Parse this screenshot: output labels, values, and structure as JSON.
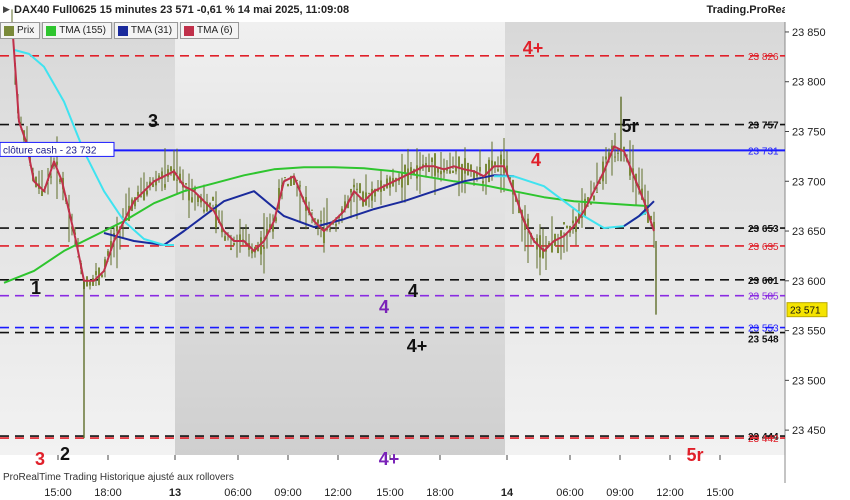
{
  "header": {
    "title": "DAX40 Full0625 15 minutes 23 571 -0,61 % 14 mai 2025, 11:09:08",
    "brand": "Trading.ProRealTime.com"
  },
  "legend": [
    {
      "label": "Prix",
      "color": "#7a8a3a"
    },
    {
      "label": "TMA (155)",
      "color": "#2ec52e"
    },
    {
      "label": "TMA (31)",
      "color": "#1a2a9c"
    },
    {
      "label": "TMA (6)",
      "color": "#c0304a"
    }
  ],
  "footer": "ProRealTime Trading  Historique ajusté aux rollovers",
  "cash_label": "clôture cash -  23 732",
  "chart_data": {
    "type": "candlestick",
    "ylim": [
      23425,
      23860
    ],
    "y_ticks": [
      {
        "v": 23850,
        "label": "23 850"
      },
      {
        "v": 23800,
        "label": "23 800"
      },
      {
        "v": 23750,
        "label": "23 750"
      },
      {
        "v": 23700,
        "label": "23 700"
      },
      {
        "v": 23650,
        "label": "23 650"
      },
      {
        "v": 23600,
        "label": "23 600"
      },
      {
        "v": 23550,
        "label": "23 550"
      },
      {
        "v": 23500,
        "label": "23 500"
      },
      {
        "v": 23450,
        "label": "23 450"
      }
    ],
    "x_ticks": [
      "15:00",
      "18:00",
      "13",
      "06:00",
      "09:00",
      "12:00",
      "15:00",
      "18:00",
      "14",
      "06:00",
      "09:00",
      "12:00",
      "15:00"
    ],
    "current_price": {
      "value": 23571,
      "label": "23 571"
    },
    "levels": [
      {
        "value": 23826,
        "label": "23 826",
        "color": "#e0202a",
        "style": "dash",
        "marker": "4+",
        "marker_color": "#e0202a"
      },
      {
        "value": 23757,
        "label": "23 757",
        "color": "#111111",
        "style": "dash",
        "marker": "3",
        "marker_color": "#111111"
      },
      {
        "value": 23757,
        "label": "",
        "color": "#111111",
        "style": "none",
        "marker": "5r",
        "marker_color": "#111111"
      },
      {
        "value": 23731,
        "label": "23 731",
        "color": "#1a1aff",
        "style": "solid",
        "marker": "4",
        "marker_color": "#e0202a"
      },
      {
        "value": 23653,
        "label": "23 653",
        "color": "#111111",
        "style": "dash",
        "marker": "",
        "marker_color": ""
      },
      {
        "value": 23635,
        "label": "23 635",
        "color": "#e0202a",
        "style": "dash",
        "marker": "",
        "marker_color": ""
      },
      {
        "value": 23601,
        "label": "23 601",
        "color": "#111111",
        "style": "dash",
        "marker": "4",
        "marker_color": "#111111"
      },
      {
        "value": 23601,
        "label": "",
        "color": "#111111",
        "style": "none",
        "marker": "1",
        "marker_color": "#111111"
      },
      {
        "value": 23585,
        "label": "23 585",
        "color": "#8a2be2",
        "style": "dash",
        "marker": "4",
        "marker_color": "#7a22b8"
      },
      {
        "value": 23553,
        "label": "23 553",
        "color": "#1a1aff",
        "style": "dash",
        "marker": "",
        "marker_color": ""
      },
      {
        "value": 23548,
        "label": "23 548",
        "color": "#111111",
        "style": "dash",
        "marker": "4+",
        "marker_color": "#111111"
      },
      {
        "value": 23444,
        "label": "23 444",
        "color": "#111111",
        "style": "dash",
        "marker": "2",
        "marker_color": "#111111"
      },
      {
        "value": 23442,
        "label": "23 442",
        "color": "#e0202a",
        "style": "dash",
        "marker": "4+",
        "marker_color": "#7a22b8"
      },
      {
        "value": 23442,
        "label": "",
        "color": "#e0202a",
        "style": "none",
        "marker": "5r",
        "marker_color": "#e0202a"
      },
      {
        "value": 23442,
        "label": "",
        "color": "#e0202a",
        "style": "none",
        "marker": "3",
        "marker_color": "#e0202a"
      }
    ],
    "series": [
      {
        "name": "TMA (155)",
        "color": "#2ec52e",
        "values": [
          [
            0,
            23598
          ],
          [
            30,
            23610
          ],
          [
            60,
            23630
          ],
          [
            90,
            23645
          ],
          [
            120,
            23660
          ],
          [
            150,
            23678
          ],
          [
            180,
            23690
          ],
          [
            210,
            23698
          ],
          [
            240,
            23706
          ],
          [
            270,
            23712
          ],
          [
            300,
            23714
          ],
          [
            330,
            23714
          ],
          [
            360,
            23713
          ],
          [
            390,
            23710
          ],
          [
            420,
            23705
          ],
          [
            450,
            23700
          ],
          [
            480,
            23696
          ],
          [
            510,
            23690
          ],
          [
            540,
            23684
          ],
          [
            570,
            23680
          ],
          [
            600,
            23678
          ],
          [
            630,
            23676
          ],
          [
            645,
            23675
          ]
        ]
      },
      {
        "name": "TMA (31)",
        "color": "#1a2a9c",
        "values": [
          [
            100,
            23648
          ],
          [
            130,
            23640
          ],
          [
            160,
            23636
          ],
          [
            180,
            23650
          ],
          [
            200,
            23665
          ],
          [
            220,
            23680
          ],
          [
            250,
            23690
          ],
          [
            280,
            23665
          ],
          [
            310,
            23654
          ],
          [
            340,
            23662
          ],
          [
            370,
            23672
          ],
          [
            400,
            23680
          ],
          [
            430,
            23690
          ],
          [
            460,
            23700
          ],
          [
            490,
            23706
          ],
          [
            510,
            23705
          ]
        ]
      },
      {
        "name": "TMA (31) cyan",
        "color": "#3fe3f0",
        "values": [
          [
            10,
            23832
          ],
          [
            25,
            23828
          ],
          [
            40,
            23815
          ],
          [
            60,
            23780
          ],
          [
            80,
            23730
          ],
          [
            100,
            23690
          ],
          [
            120,
            23660
          ],
          [
            140,
            23642
          ],
          [
            160,
            23636
          ],
          [
            170,
            23636
          ]
        ]
      },
      {
        "name": "TMA (31) cyan 2",
        "color": "#3fe3f0",
        "values": [
          [
            490,
            23705
          ],
          [
            510,
            23705
          ],
          [
            540,
            23695
          ],
          [
            560,
            23680
          ],
          [
            580,
            23665
          ],
          [
            600,
            23653
          ],
          [
            620,
            23655
          ],
          [
            635,
            23665
          ],
          [
            645,
            23670
          ]
        ]
      },
      {
        "name": "TMA (31) blue 2",
        "color": "#1a2a9c",
        "values": [
          [
            620,
            23655
          ],
          [
            635,
            23665
          ],
          [
            650,
            23680
          ]
        ]
      },
      {
        "name": "TMA (6)",
        "color": "#c0304a",
        "values": [
          [
            8,
            23860
          ],
          [
            15,
            23760
          ],
          [
            22,
            23740
          ],
          [
            30,
            23700
          ],
          [
            40,
            23690
          ],
          [
            50,
            23720
          ],
          [
            58,
            23700
          ],
          [
            65,
            23670
          ],
          [
            72,
            23640
          ],
          [
            80,
            23600
          ],
          [
            90,
            23600
          ],
          [
            100,
            23610
          ],
          [
            110,
            23640
          ],
          [
            120,
            23660
          ],
          [
            130,
            23680
          ],
          [
            140,
            23690
          ],
          [
            150,
            23700
          ],
          [
            160,
            23705
          ],
          [
            170,
            23710
          ],
          [
            180,
            23695
          ],
          [
            190,
            23690
          ],
          [
            200,
            23680
          ],
          [
            210,
            23670
          ],
          [
            220,
            23650
          ],
          [
            230,
            23640
          ],
          [
            240,
            23640
          ],
          [
            250,
            23630
          ],
          [
            260,
            23640
          ],
          [
            270,
            23660
          ],
          [
            280,
            23700
          ],
          [
            290,
            23705
          ],
          [
            300,
            23680
          ],
          [
            310,
            23660
          ],
          [
            320,
            23650
          ],
          [
            330,
            23660
          ],
          [
            340,
            23670
          ],
          [
            350,
            23690
          ],
          [
            360,
            23680
          ],
          [
            370,
            23690
          ],
          [
            380,
            23695
          ],
          [
            390,
            23700
          ],
          [
            400,
            23705
          ],
          [
            410,
            23710
          ],
          [
            420,
            23715
          ],
          [
            430,
            23715
          ],
          [
            440,
            23712
          ],
          [
            450,
            23715
          ],
          [
            460,
            23712
          ],
          [
            470,
            23710
          ],
          [
            480,
            23705
          ],
          [
            490,
            23715
          ],
          [
            500,
            23715
          ],
          [
            510,
            23690
          ],
          [
            520,
            23660
          ],
          [
            530,
            23640
          ],
          [
            540,
            23630
          ],
          [
            550,
            23640
          ],
          [
            560,
            23645
          ],
          [
            570,
            23655
          ],
          [
            580,
            23670
          ],
          [
            590,
            23690
          ],
          [
            600,
            23710
          ],
          [
            610,
            23735
          ],
          [
            620,
            23730
          ],
          [
            630,
            23705
          ],
          [
            640,
            23680
          ],
          [
            650,
            23650
          ]
        ]
      }
    ]
  }
}
